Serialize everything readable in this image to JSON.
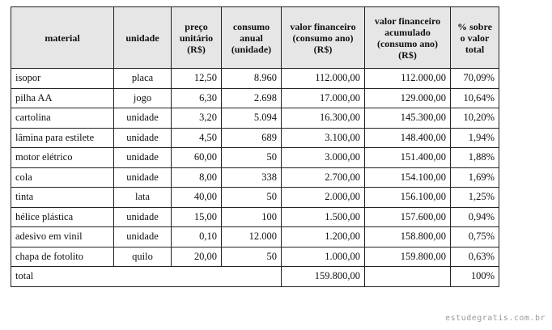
{
  "table": {
    "header": [
      "material",
      "unidade",
      "preço unitário (R$)",
      "consumo anual (unidade)",
      "valor financeiro (consumo ano) (R$)",
      "valor financeiro acumulado (consumo ano) (R$)",
      "% sobre o valor total"
    ],
    "rows": [
      [
        "isopor",
        "placa",
        "12,50",
        "8.960",
        "112.000,00",
        "112.000,00",
        "70,09%"
      ],
      [
        "pilha AA",
        "jogo",
        "6,30",
        "2.698",
        "17.000,00",
        "129.000,00",
        "10,64%"
      ],
      [
        "cartolina",
        "unidade",
        "3,20",
        "5.094",
        "16.300,00",
        "145.300,00",
        "10,20%"
      ],
      [
        "lâmina para estilete",
        "unidade",
        "4,50",
        "689",
        "3.100,00",
        "148.400,00",
        "1,94%"
      ],
      [
        "motor elétrico",
        "unidade",
        "60,00",
        "50",
        "3.000,00",
        "151.400,00",
        "1,88%"
      ],
      [
        "cola",
        "unidade",
        "8,00",
        "338",
        "2.700,00",
        "154.100,00",
        "1,69%"
      ],
      [
        "tinta",
        "lata",
        "40,00",
        "50",
        "2.000,00",
        "156.100,00",
        "1,25%"
      ],
      [
        "hélice plástica",
        "unidade",
        "15,00",
        "100",
        "1.500,00",
        "157.600,00",
        "0,94%"
      ],
      [
        "adesivo em vinil",
        "unidade",
        "0,10",
        "12.000",
        "1.200,00",
        "158.800,00",
        "0,75%"
      ],
      [
        "chapa de fotolito",
        "quilo",
        "20,00",
        "50",
        "1.000,00",
        "159.800,00",
        "0,63%"
      ]
    ],
    "total": {
      "label": "total",
      "value": "159.800,00",
      "percent": "100%"
    }
  },
  "watermark": "estudegratis.com.br"
}
